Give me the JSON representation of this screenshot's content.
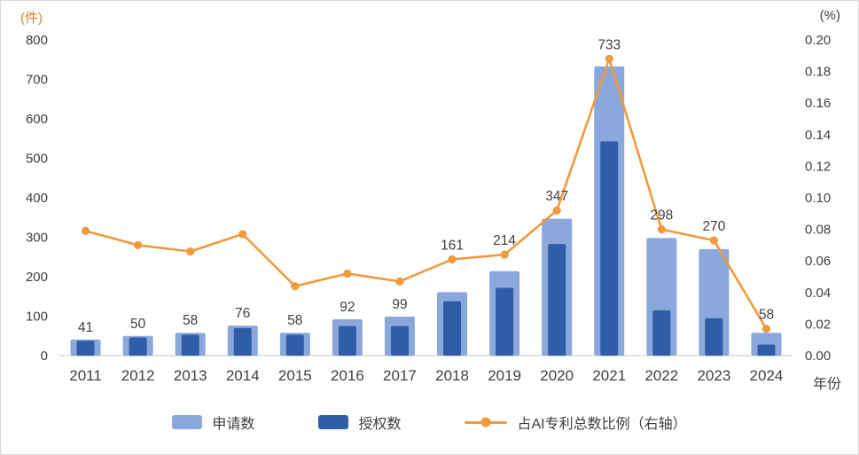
{
  "chart_data": {
    "type": "bar+line",
    "title": "",
    "categories": [
      "2011",
      "2012",
      "2013",
      "2014",
      "2015",
      "2016",
      "2017",
      "2018",
      "2019",
      "2020",
      "2021",
      "2022",
      "2023",
      "2024"
    ],
    "bar_series": [
      {
        "name": "申请数",
        "color": "#8aa8db",
        "values": [
          41,
          50,
          58,
          76,
          58,
          92,
          99,
          161,
          214,
          347,
          733,
          298,
          270,
          58
        ],
        "data_labels": true
      },
      {
        "name": "授权数",
        "color": "#2f5da8",
        "values": [
          38,
          46,
          53,
          70,
          53,
          75,
          75,
          138,
          172,
          283,
          543,
          115,
          95,
          28
        ],
        "data_labels": false
      }
    ],
    "line_series": {
      "name": "占AI专利总数比例（右轴）",
      "color": "#f09a3d",
      "axis": "right",
      "values": [
        0.079,
        0.07,
        0.066,
        0.077,
        0.044,
        0.052,
        0.047,
        0.061,
        0.064,
        0.092,
        0.188,
        0.08,
        0.073,
        0.017
      ]
    },
    "left_axis": {
      "unit": "(件)",
      "min": 0,
      "max": 800,
      "step": 100
    },
    "right_axis": {
      "unit": "(%)",
      "min": 0,
      "max": 0.2,
      "step": 0.02,
      "decimals": 2
    },
    "x_axis_label": "年份",
    "legend_position": "bottom",
    "grid": false,
    "colors": {
      "applications_bar": "#8aa8db",
      "grants_bar": "#2f5da8",
      "ratio_line": "#f09a3d",
      "text": "#3f3f3f",
      "axis_line": "#c9c9c9",
      "left_unit_text": "#d97e2e"
    }
  }
}
